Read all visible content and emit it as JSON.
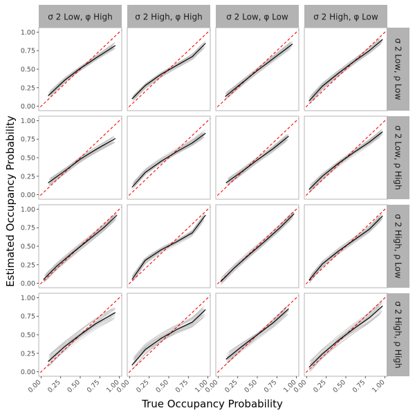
{
  "chart_data": {
    "type": "line",
    "xlabel": "True Occupancy Probability",
    "ylabel": "Estimated Occupancy Probability",
    "xlim": [
      -0.03,
      1.03
    ],
    "ylim": [
      -0.06,
      1.06
    ],
    "x_ticks": [
      "0.00",
      "0.25",
      "0.50",
      "0.75",
      "1.00"
    ],
    "y_ticks": [
      "0.00",
      "0.25",
      "0.50",
      "0.75",
      "1.00"
    ],
    "column_strips": [
      "σ 2 Low, φ  High",
      "σ 2 High, φ  High",
      "σ 2 Low, φ  Low",
      "σ 2 High, φ  Low"
    ],
    "row_strips": [
      "σ 2 Low, ρ  Low",
      "σ 2 Low, ρ  High",
      "σ 2 High, ρ  Low",
      "σ 2 High, ρ  High"
    ],
    "reference_line": {
      "label": "1:1 line",
      "color": "#ff0000",
      "x": [
        0,
        1
      ],
      "y": [
        0,
        1
      ]
    },
    "colors": {
      "mean_curve": "#000000",
      "replicates": "#bdbdbd",
      "strip_bg": "#b3b3b3",
      "panel_border": "#b3b3b3"
    },
    "series": [
      {
        "row": 0,
        "col": 0,
        "name": "mean",
        "x": [
          0.09,
          0.3,
          0.5,
          0.7,
          0.95
        ],
        "y": [
          0.14,
          0.35,
          0.51,
          0.65,
          0.82
        ]
      },
      {
        "row": 0,
        "col": 1,
        "name": "mean",
        "x": [
          0.03,
          0.2,
          0.4,
          0.6,
          0.8,
          0.97
        ],
        "y": [
          0.1,
          0.28,
          0.43,
          0.55,
          0.67,
          0.85
        ]
      },
      {
        "row": 0,
        "col": 2,
        "name": "mean",
        "x": [
          0.09,
          0.3,
          0.5,
          0.7,
          0.95
        ],
        "y": [
          0.13,
          0.31,
          0.48,
          0.64,
          0.84
        ]
      },
      {
        "row": 0,
        "col": 3,
        "name": "mean",
        "x": [
          0.03,
          0.2,
          0.4,
          0.6,
          0.8,
          0.97
        ],
        "y": [
          0.07,
          0.27,
          0.44,
          0.6,
          0.75,
          0.9
        ]
      },
      {
        "row": 1,
        "col": 0,
        "name": "mean",
        "x": [
          0.09,
          0.3,
          0.5,
          0.7,
          0.95
        ],
        "y": [
          0.16,
          0.32,
          0.48,
          0.61,
          0.76
        ]
      },
      {
        "row": 1,
        "col": 1,
        "name": "mean",
        "x": [
          0.03,
          0.2,
          0.4,
          0.6,
          0.8,
          0.97
        ],
        "y": [
          0.1,
          0.3,
          0.45,
          0.58,
          0.7,
          0.83
        ]
      },
      {
        "row": 1,
        "col": 2,
        "name": "mean",
        "x": [
          0.1,
          0.3,
          0.5,
          0.7,
          0.9
        ],
        "y": [
          0.16,
          0.31,
          0.47,
          0.62,
          0.79
        ]
      },
      {
        "row": 1,
        "col": 3,
        "name": "mean",
        "x": [
          0.03,
          0.2,
          0.4,
          0.6,
          0.8,
          0.97
        ],
        "y": [
          0.07,
          0.25,
          0.42,
          0.57,
          0.71,
          0.85
        ]
      },
      {
        "row": 2,
        "col": 0,
        "name": "mean",
        "x": [
          0.03,
          0.2,
          0.4,
          0.6,
          0.8,
          0.97
        ],
        "y": [
          0.05,
          0.23,
          0.41,
          0.58,
          0.75,
          0.92
        ]
      },
      {
        "row": 2,
        "col": 1,
        "name": "mean",
        "x": [
          0.03,
          0.2,
          0.4,
          0.6,
          0.8,
          0.97
        ],
        "y": [
          0.05,
          0.31,
          0.45,
          0.56,
          0.68,
          0.92
        ]
      },
      {
        "row": 2,
        "col": 2,
        "name": "mean",
        "x": [
          0.03,
          0.2,
          0.4,
          0.6,
          0.8,
          0.97
        ],
        "y": [
          0.02,
          0.2,
          0.39,
          0.57,
          0.76,
          0.94
        ]
      },
      {
        "row": 2,
        "col": 3,
        "name": "mean",
        "x": [
          0.03,
          0.2,
          0.4,
          0.6,
          0.8,
          0.97
        ],
        "y": [
          0.04,
          0.26,
          0.43,
          0.58,
          0.73,
          0.91
        ]
      },
      {
        "row": 3,
        "col": 0,
        "name": "mean",
        "x": [
          0.09,
          0.3,
          0.5,
          0.7,
          0.95
        ],
        "y": [
          0.14,
          0.34,
          0.5,
          0.65,
          0.8
        ]
      },
      {
        "row": 3,
        "col": 1,
        "name": "mean",
        "x": [
          0.03,
          0.2,
          0.4,
          0.6,
          0.8,
          0.97
        ],
        "y": [
          0.09,
          0.3,
          0.45,
          0.57,
          0.67,
          0.84
        ]
      },
      {
        "row": 3,
        "col": 2,
        "name": "mean",
        "x": [
          0.1,
          0.3,
          0.5,
          0.7,
          0.9
        ],
        "y": [
          0.17,
          0.34,
          0.5,
          0.66,
          0.85
        ]
      },
      {
        "row": 3,
        "col": 3,
        "name": "mean",
        "x": [
          0.03,
          0.2,
          0.4,
          0.6,
          0.8,
          0.97
        ],
        "y": [
          0.06,
          0.24,
          0.42,
          0.58,
          0.73,
          0.89
        ]
      }
    ]
  }
}
